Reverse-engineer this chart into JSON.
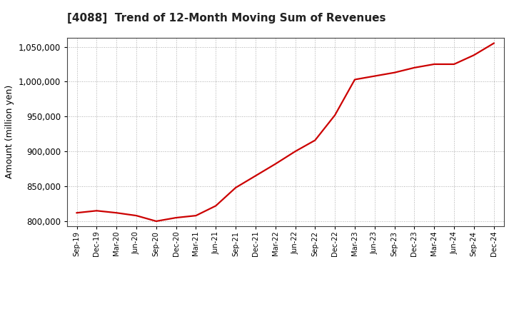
{
  "title": "[4088]  Trend of 12-Month Moving Sum of Revenues",
  "ylabel": "Amount (million yen)",
  "line_color": "#cc0000",
  "background_color": "#ffffff",
  "grid_color": "#999999",
  "ylim": [
    793000,
    1063000
  ],
  "yticks": [
    800000,
    850000,
    900000,
    950000,
    1000000,
    1050000
  ],
  "x_labels": [
    "Sep-19",
    "Dec-19",
    "Mar-20",
    "Jun-20",
    "Sep-20",
    "Dec-20",
    "Mar-21",
    "Jun-21",
    "Sep-21",
    "Dec-21",
    "Mar-22",
    "Jun-22",
    "Sep-22",
    "Dec-22",
    "Mar-23",
    "Jun-23",
    "Sep-23",
    "Dec-23",
    "Mar-24",
    "Jun-24",
    "Sep-24",
    "Dec-24"
  ],
  "values": [
    812000,
    815000,
    812000,
    808000,
    800000,
    805000,
    808000,
    822000,
    848000,
    865000,
    882000,
    900000,
    916000,
    952000,
    1003000,
    1008000,
    1013000,
    1020000,
    1025000,
    1025000,
    1038000,
    1055000
  ]
}
